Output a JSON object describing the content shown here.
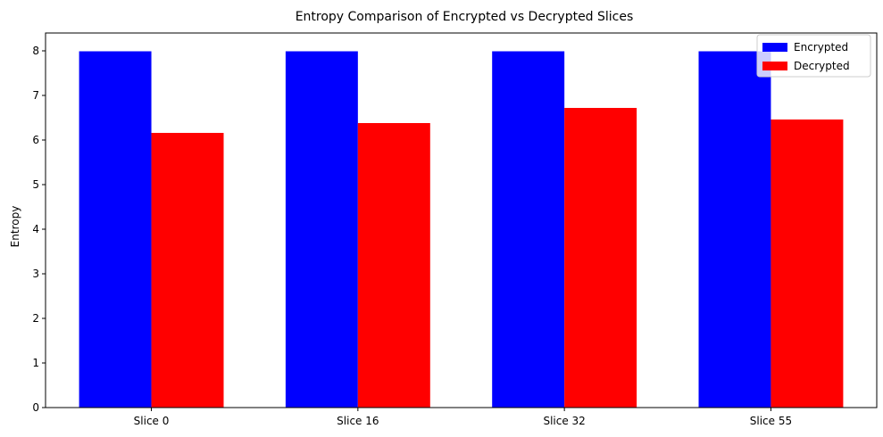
{
  "chart_data": {
    "type": "bar",
    "title": "Entropy Comparison of Encrypted vs Decrypted Slices",
    "xlabel": "",
    "ylabel": "Entropy",
    "categories": [
      "Slice 0",
      "Slice 16",
      "Slice 32",
      "Slice 55"
    ],
    "series": [
      {
        "name": "Encrypted",
        "color": "#0000ff",
        "values": [
          7.99,
          7.99,
          7.99,
          7.99
        ]
      },
      {
        "name": "Decrypted",
        "color": "#ff0000",
        "values": [
          6.16,
          6.38,
          6.72,
          6.46
        ]
      }
    ],
    "ylim": [
      0,
      8.4
    ],
    "yticks": [
      0,
      1,
      2,
      3,
      4,
      5,
      6,
      7,
      8
    ],
    "grid": false,
    "legend": "top-right"
  }
}
